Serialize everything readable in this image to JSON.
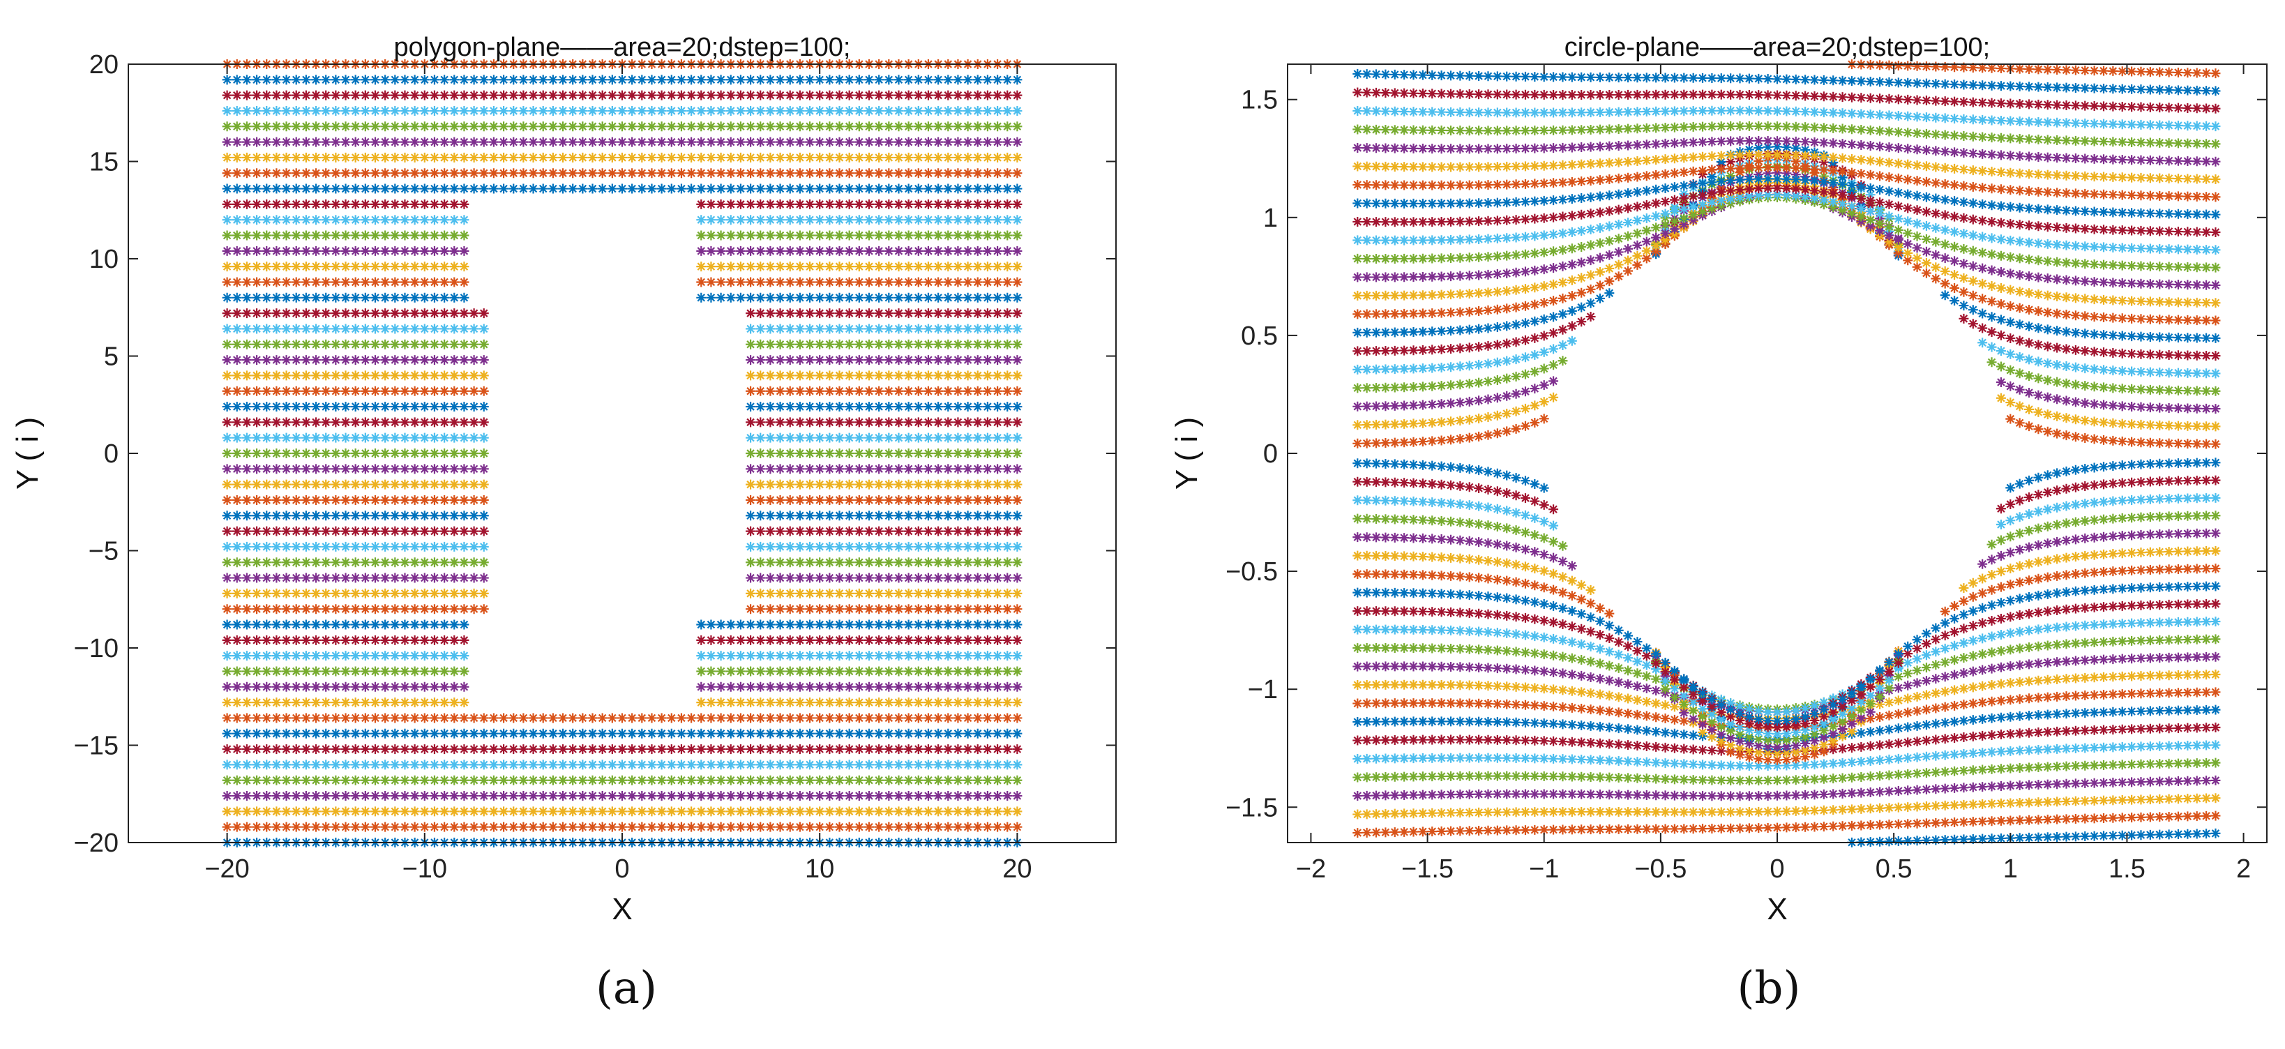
{
  "colors": [
    "#0072BD",
    "#D95319",
    "#EDB120",
    "#7E2F8E",
    "#77AC30",
    "#4DBEEE",
    "#A2142F"
  ],
  "captions": {
    "a": "(a)",
    "b": "(b)"
  },
  "chart_data": [
    {
      "type": "scatter",
      "title": "polygon-plane——area=20;dstep=100;",
      "xlabel": "X",
      "ylabel": "Y ( i )",
      "xlim": [
        -25,
        25
      ],
      "ylim": [
        -20,
        20
      ],
      "xticks": [
        -20,
        -10,
        0,
        10,
        20
      ],
      "yticks": [
        -20,
        -15,
        -10,
        -5,
        0,
        5,
        10,
        15,
        20
      ],
      "xtick_labels": [
        "−20",
        "−10",
        "0",
        "10",
        "20"
      ],
      "ytick_labels": [
        "−20",
        "−15",
        "−10",
        "−5",
        "0",
        "5",
        "10",
        "15",
        "20"
      ],
      "marker": "*",
      "series_description": "horizontal lines of '*' markers every ~0.8 units, x from -20 to 20, around a stepped rectangular hole",
      "domain": {
        "x": [
          -20,
          20
        ],
        "y": [
          -20,
          20
        ],
        "row_step": 0.8,
        "col_step": 0.5
      },
      "hole_polygon": [
        [
          -7.5,
          13.5
        ],
        [
          3.8,
          13.5
        ],
        [
          3.8,
          8.0
        ],
        [
          6.2,
          8.0
        ],
        [
          6.2,
          5.0
        ],
        [
          6.2,
          -5.0
        ],
        [
          6.2,
          -8.5
        ],
        [
          3.8,
          -8.5
        ],
        [
          3.8,
          -13.5
        ],
        [
          -7.5,
          -13.5
        ],
        [
          -7.5,
          -8.0
        ],
        [
          -6.5,
          -8.0
        ],
        [
          -6.5,
          7.5
        ],
        [
          -7.5,
          7.5
        ]
      ]
    },
    {
      "type": "scatter",
      "title": "circle-plane——area=20;dstep=100;",
      "xlabel": "X",
      "ylabel": "Y ( i )",
      "xlim": [
        -2.1,
        2.1
      ],
      "ylim": [
        -1.65,
        1.65
      ],
      "xticks": [
        -2,
        -1.5,
        -1,
        -0.5,
        0,
        0.5,
        1,
        1.5,
        2
      ],
      "yticks": [
        -1.5,
        -1,
        -0.5,
        0,
        0.5,
        1,
        1.5
      ],
      "xtick_labels": [
        "−2",
        "−1.5",
        "−1",
        "−0.5",
        "0",
        "0.5",
        "1",
        "1.5",
        "2"
      ],
      "ytick_labels": [
        "−1.5",
        "−1",
        "−0.5",
        "0",
        "0.5",
        "1",
        "1.5"
      ],
      "marker": "*",
      "series_description": "curved streamline rows of '*' markers flowing around a circular hole of radius ~1 centered at the origin",
      "domain": {
        "x": [
          -1.8,
          1.9
        ],
        "y": [
          -1.65,
          1.65
        ],
        "row_count": 44,
        "col_step": 0.04
      },
      "hole_circle": {
        "cx": 0,
        "cy": 0,
        "r": 0.98
      }
    }
  ]
}
